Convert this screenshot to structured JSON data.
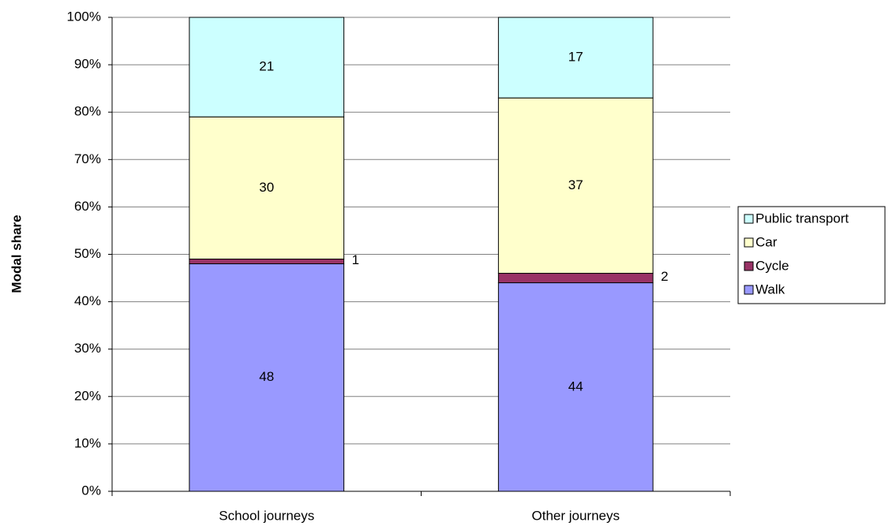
{
  "chart_data": {
    "type": "stacked_bar",
    "y_label": "Modal share",
    "categories": [
      "School journeys",
      "Other journeys"
    ],
    "series": [
      {
        "name": "Walk",
        "color": "#9999ff",
        "values": [
          48,
          44
        ]
      },
      {
        "name": "Cycle",
        "color": "#993366",
        "values": [
          1,
          2
        ]
      },
      {
        "name": "Car",
        "color": "#ffffcc",
        "values": [
          30,
          37
        ]
      },
      {
        "name": "Public transport",
        "color": "#ccffff",
        "values": [
          21,
          17
        ]
      }
    ],
    "ylim": [
      0,
      100
    ],
    "yticks": [
      {
        "value": 0,
        "label": "0%"
      },
      {
        "value": 10,
        "label": "10%"
      },
      {
        "value": 20,
        "label": "20%"
      },
      {
        "value": 30,
        "label": "30%"
      },
      {
        "value": 40,
        "label": "40%"
      },
      {
        "value": 50,
        "label": "50%"
      },
      {
        "value": 60,
        "label": "60%"
      },
      {
        "value": 70,
        "label": "70%"
      },
      {
        "value": 80,
        "label": "80%"
      },
      {
        "value": 90,
        "label": "90%"
      },
      {
        "value": 100,
        "label": "100%"
      }
    ],
    "grid": true,
    "legend": "right"
  }
}
